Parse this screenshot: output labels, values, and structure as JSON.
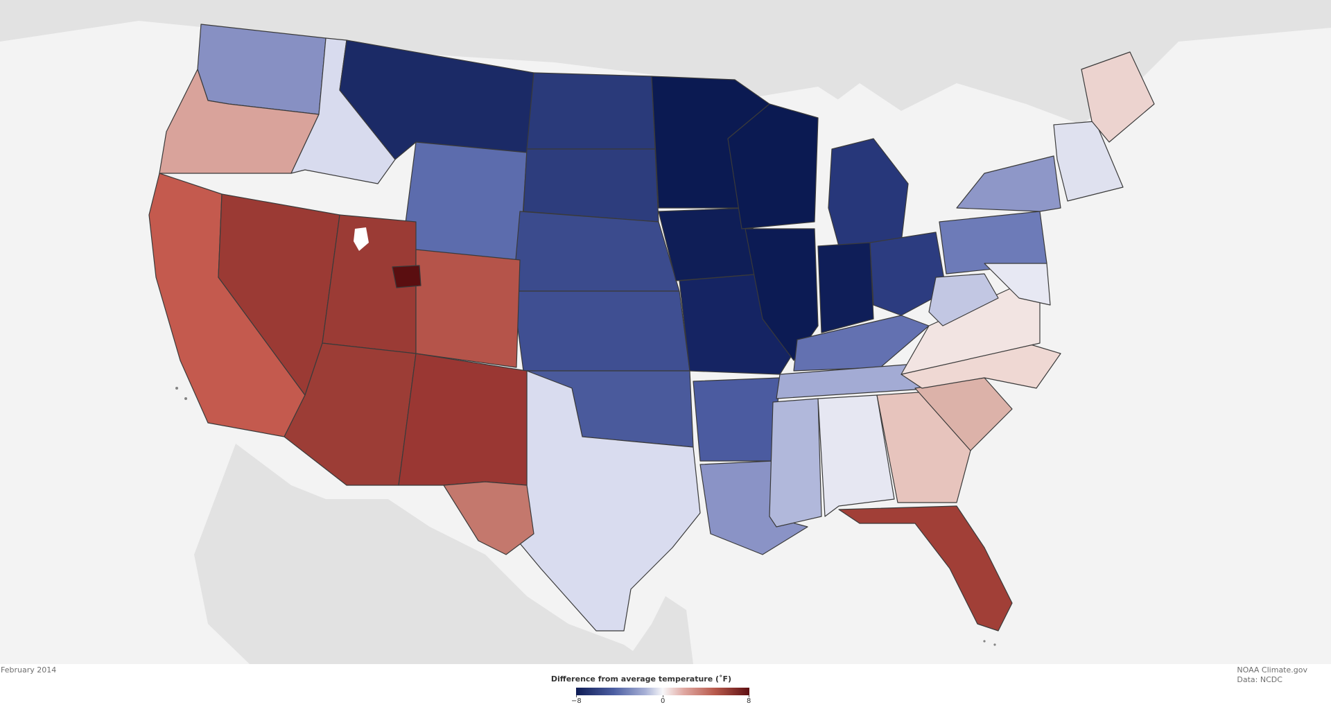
{
  "footer": {
    "date_label": "February 2014",
    "credit_line1": "NOAA Climate.gov",
    "credit_line2": "Data: NCDC"
  },
  "legend": {
    "title": "Difference from average temperature (˚F)",
    "min_label": "−8",
    "mid_label": "0",
    "max_label": "8",
    "colors": {
      "cold_extreme": "#0e1c55",
      "cold": "#4d5fa3",
      "cool": "#a8b1d6",
      "neutral": "#f7f7f9",
      "warm": "#e0a9a3",
      "hot": "#b85a4c",
      "hot_extreme": "#5e0f12"
    }
  },
  "map": {
    "background": "#f3f3f3",
    "land_color": "#e0e0e0",
    "state_border_color": "#3a3a3a"
  }
}
